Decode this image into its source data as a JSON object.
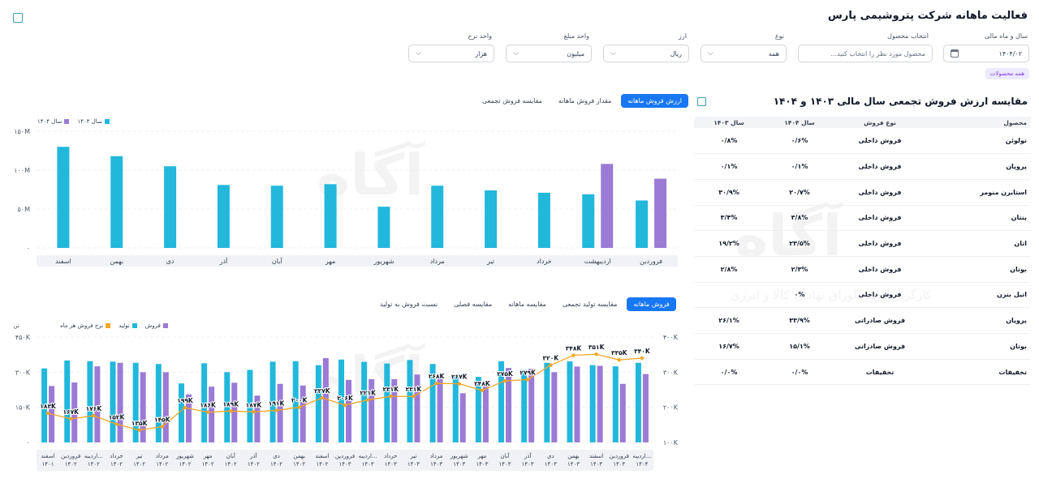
{
  "header": {
    "title": "فعالیت ماهانه شرکت پتروشیمی پارس"
  },
  "filters": {
    "fiscal": {
      "label": "سال و ماه مالی",
      "value": "۱۴۰۴/۰۲"
    },
    "product": {
      "label": "انتخاب محصول",
      "placeholder": "محصول مورد نظر را انتخاب کنید..."
    },
    "type": {
      "label": "نوع",
      "value": "همه"
    },
    "currency": {
      "label": "ارز",
      "value": "ریال"
    },
    "amount_unit": {
      "label": "واحد مبلغ",
      "value": "میلیون"
    },
    "rate_unit": {
      "label": "واحد نرخ",
      "value": "هزار"
    },
    "all_products_chip": "همه محصولات"
  },
  "comparison": {
    "title": "مقایسه ارزش فروش تجمعی سال مالی ۱۴۰۳ و ۱۴۰۴",
    "headers": [
      "محصول",
      "نوع فروش",
      "سال ۱۴۰۴",
      "سال ۱۴۰۳"
    ],
    "rows": [
      {
        "product": "تولوئن",
        "type": "فروش داخلی",
        "y1404": "۰/۶%",
        "y1403": "۰/۸%"
      },
      {
        "product": "پروپان",
        "type": "فروش داخلی",
        "y1404": "۰/۱%",
        "y1403": "۰/۱%"
      },
      {
        "product": "استایرن منومر",
        "type": "فروش داخلی",
        "y1404": "۲۰/۷%",
        "y1403": "۳۰/۹%"
      },
      {
        "product": "پنتان",
        "type": "فروش داخلی",
        "y1404": "۳/۸%",
        "y1403": "۳/۴%"
      },
      {
        "product": "اتان",
        "type": "فروش داخلی",
        "y1404": "۲۳/۵%",
        "y1403": "۱۹/۲%"
      },
      {
        "product": "بوتان",
        "type": "فروش داخلی",
        "y1404": "۲/۳%",
        "y1403": "۲/۸%"
      },
      {
        "product": "اتیل بنزن",
        "type": "فروش داخلی",
        "y1404": "۰%",
        "y1403": ""
      },
      {
        "product": "پروپان",
        "type": "فروش صادراتی",
        "y1404": "۳۳/۹%",
        "y1403": "۲۶/۱%"
      },
      {
        "product": "بوتان",
        "type": "فروش صادراتی",
        "y1404": "۱۵/۱%",
        "y1403": "۱۶/۷%"
      },
      {
        "product": "تخفیفات",
        "type": "تخفیفات",
        "y1404": "۰/۰%",
        "y1403": "۰/۰%"
      }
    ]
  },
  "top_tabs": [
    "ارزش فروش ماهانه",
    "مقدار فروش ماهانه",
    "مقایسه فروش تجمعی"
  ],
  "bottom_tabs": [
    "فروش ماهانه",
    "مقایسه تولید تجمعی",
    "مقایسه ماهانه",
    "مقایسه فصلی",
    "نسبت فروش به تولید"
  ],
  "watermark": {
    "logo": "آگاه",
    "line": "کارگزار بورس اوراق بهادار، کالا و انرژی"
  },
  "colors": {
    "cyan": "#22b8dc",
    "purple": "#9b7bd6",
    "orange": "#f5a623",
    "accent": "#1877f2"
  },
  "chart_data": [
    {
      "type": "bar",
      "title": "",
      "categories": [
        "فروردین",
        "اردیبهشت",
        "خرداد",
        "تیر",
        "مرداد",
        "شهریور",
        "مهر",
        "آبان",
        "آذر",
        "دی",
        "بهمن",
        "اسفند"
      ],
      "series": [
        {
          "name": "سال ۱۴۰۳",
          "color": "#22b8dc",
          "values": [
            61,
            69,
            71,
            74,
            80,
            53,
            82,
            80,
            81,
            105,
            118,
            130
          ]
        },
        {
          "name": "سال ۱۴۰۴",
          "color": "#9b7bd6",
          "values": [
            89,
            108,
            null,
            null,
            null,
            null,
            null,
            null,
            null,
            null,
            null,
            null
          ]
        }
      ],
      "y_ticks": [
        "۰",
        "۵۰M",
        "۱۰۰M",
        "۱۵۰M"
      ],
      "ylim": [
        0,
        150
      ],
      "grid": true,
      "legend": "top-left"
    },
    {
      "type": "bar",
      "title": "",
      "categories": [
        [
          "اسفند",
          "۱۴۰۱"
        ],
        [
          "فروردین",
          "۱۴۰۲"
        ],
        [
          "اردیبه...",
          "۱۴۰۲"
        ],
        [
          "خرداد",
          "۱۴۰۲"
        ],
        [
          "تیر",
          "۱۴۰۲"
        ],
        [
          "مرداد",
          "۱۴۰۲"
        ],
        [
          "شهریور",
          "۱۴۰۲"
        ],
        [
          "مهر",
          "۱۴۰۲"
        ],
        [
          "آبان",
          "۱۴۰۲"
        ],
        [
          "آذر",
          "۱۴۰۲"
        ],
        [
          "دی",
          "۱۴۰۲"
        ],
        [
          "بهمن",
          "۱۴۰۲"
        ],
        [
          "اسفند",
          "۱۴۰۲"
        ],
        [
          "فروردین",
          "۱۴۰۳"
        ],
        [
          "اردیبه...",
          "۱۴۰۳"
        ],
        [
          "خرداد",
          "۱۴۰۳"
        ],
        [
          "تیر",
          "۱۴۰۳"
        ],
        [
          "مرداد",
          "۱۴۰۳"
        ],
        [
          "شهریور",
          "۱۴۰۳"
        ],
        [
          "مهر",
          "۱۴۰۳"
        ],
        [
          "آبان",
          "۱۴۰۳"
        ],
        [
          "آذر",
          "۱۴۰۳"
        ],
        [
          "دی",
          "۱۴۰۳"
        ],
        [
          "بهمن",
          "۱۴۰۳"
        ],
        [
          "اسفند",
          "۱۴۰۳"
        ],
        [
          "فروردین",
          "۱۴۰۴"
        ],
        [
          "اردیبه...",
          "۱۴۰۴"
        ]
      ],
      "series": [
        {
          "name": "تولید",
          "color": "#22b8dc",
          "axis": "left",
          "values": [
            316,
            350,
            347,
            345,
            340,
            335,
            252,
            338,
            300,
            310,
            345,
            347,
            330,
            354,
            344,
            337,
            352,
            335,
            290,
            280,
            347,
            310,
            340,
            346,
            330,
            325,
            340
          ]
        },
        {
          "name": "فروش",
          "color": "#9b7bd6",
          "axis": "left",
          "values": [
            241,
            256,
            325,
            340,
            300,
            300,
            205,
            238,
            255,
            200,
            250,
            243,
            360,
            267,
            270,
            270,
            290,
            290,
            210,
            238,
            318,
            315,
            300,
            324,
            327,
            250,
            292
          ]
        },
        {
          "name": "نرخ فروش هر ماه",
          "color": "#f5a623",
          "axis": "right",
          "values": [
            183,
            167,
            176,
            152,
            135,
            145,
            199,
            186,
            189,
            187,
            191,
            200,
            227,
            206,
            221,
            231,
            231,
            268,
            267,
            248,
            275,
            279,
            320,
            348,
            351,
            335,
            340
          ]
        }
      ],
      "point_labels": [
        "۱۸۳K",
        "۱۶۷K",
        "۱۷۶K",
        "۱۵۲K",
        "۱۳۵K",
        "۱۴۵K",
        "۱۹۹K",
        "۱۸۶K",
        "۱۸۹K",
        "۱۸۷K",
        "۱۹۱K",
        "۲۰۰K",
        "۲۲۷K",
        "۲۰۶K",
        "۲۲۱K",
        "۲۳۱K",
        "۲۳۱K",
        "۲۶۸K",
        "۲۶۷K",
        "۲۴۸K",
        "۲۷۵K",
        "۲۷۹K",
        "۳۲۰K",
        "۳۴۸K",
        "۳۵۱K",
        "۳۳۵K",
        "۳۴۰K"
      ],
      "y_left_ticks": [
        "۰",
        "۱۵۰K",
        "۳۰۰K",
        "۴۵۰K"
      ],
      "y_left_unit": "تن",
      "ylim_left": [
        0,
        450
      ],
      "y_right_ticks": [
        "۱۰۰K",
        "۲۰۰K",
        "۳۰۰K",
        "۴۰۰K"
      ],
      "ylim_right": [
        100,
        400
      ],
      "grid": true,
      "legend": "top-left"
    }
  ]
}
